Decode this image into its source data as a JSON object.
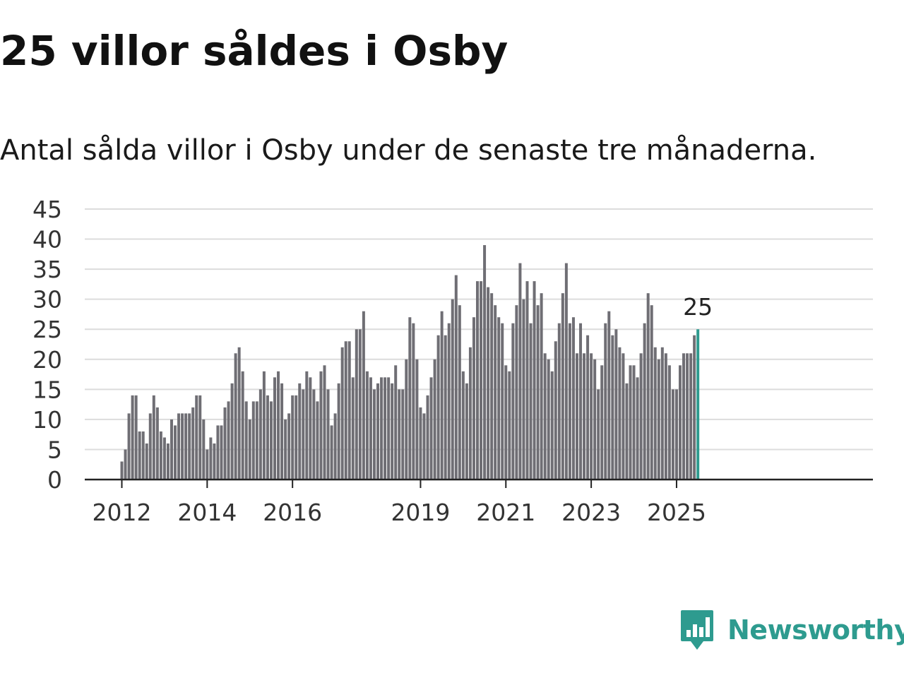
{
  "header": {
    "title": "25 villor såldes i Osby",
    "subtitle": "Antal sålda villor i Osby under de senaste tre månaderna."
  },
  "brand": {
    "name": "Newsworthy",
    "logo_icon": "bar-chart-speech-bubble-icon",
    "color": "#2e9b8f"
  },
  "chart_data": {
    "type": "bar",
    "title": "25 villor såldes i Osby",
    "subtitle": "Antal sålda villor i Osby under de senaste tre månaderna.",
    "xlabel": "",
    "ylabel": "",
    "ylim": [
      0,
      45
    ],
    "yticks": [
      "0",
      "5",
      "10",
      "15",
      "20",
      "25",
      "30",
      "35",
      "40",
      "45"
    ],
    "grid": true,
    "xticks": [
      {
        "label": "2012",
        "index": 0
      },
      {
        "label": "2014",
        "index": 24
      },
      {
        "label": "2016",
        "index": 48
      },
      {
        "label": "2019",
        "index": 84
      },
      {
        "label": "2021",
        "index": 108
      },
      {
        "label": "2023",
        "index": 132
      },
      {
        "label": "2025",
        "index": 156
      }
    ],
    "bar_color": "#6f6e74",
    "highlight_color": "#2e9b8f",
    "highlight_label": "25",
    "series": [
      {
        "values": [
          3,
          5,
          11,
          14,
          14,
          8,
          8,
          6,
          11,
          14,
          12,
          8,
          7,
          6,
          10,
          9,
          11,
          11,
          11,
          11,
          12,
          14,
          14,
          10,
          5,
          7,
          6,
          9,
          9,
          12,
          13,
          16,
          21,
          22,
          18,
          13,
          10,
          13,
          13,
          15,
          18,
          14,
          13,
          17,
          18,
          16,
          10,
          11,
          14,
          14,
          16,
          15,
          18,
          17,
          15,
          13,
          18,
          19,
          15,
          9,
          11,
          16,
          22,
          23,
          23,
          17,
          25,
          25,
          28,
          18,
          17,
          15,
          16,
          17,
          17,
          17,
          16,
          19,
          15,
          15,
          20,
          27,
          26,
          20,
          12,
          11,
          14,
          17,
          20,
          24,
          28,
          24,
          26,
          30,
          34,
          29,
          18,
          16,
          22,
          27,
          33,
          33,
          39,
          32,
          31,
          29,
          27,
          26,
          19,
          18,
          26,
          29,
          36,
          30,
          33,
          26,
          33,
          29,
          31,
          21,
          20,
          18,
          23,
          26,
          31,
          36,
          26,
          27,
          21,
          26,
          21,
          24,
          21,
          20,
          15,
          19,
          26,
          28,
          24,
          25,
          22,
          21,
          16,
          19,
          19,
          17,
          21,
          26,
          31,
          29,
          22,
          20,
          22,
          21,
          19,
          15,
          15,
          19,
          21,
          21,
          21,
          24,
          25
        ]
      }
    ]
  }
}
